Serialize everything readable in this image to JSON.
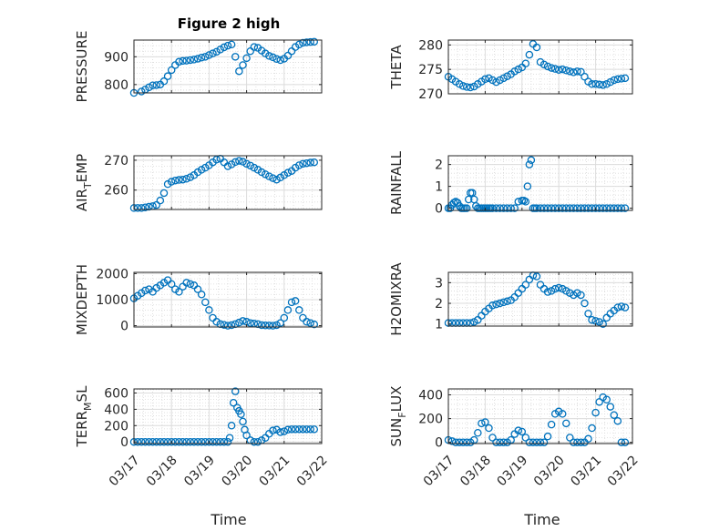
{
  "figure_title": "Figure 2 high",
  "x_label": "Time",
  "x_ticks": [
    "03/17",
    "03/18",
    "03/19",
    "03/20",
    "03/21",
    "03/22"
  ],
  "marker_color": "#0072bd",
  "chart_data": [
    {
      "type": "scatter",
      "ylabel": "PRESSURE",
      "xlabel": "",
      "x_unit": "days since 03/17",
      "xlim": [
        0,
        5
      ],
      "ylim": [
        770,
        960
      ],
      "yticks": [
        800,
        900
      ],
      "grid": true,
      "x": [
        0.0,
        0.2,
        0.3,
        0.4,
        0.5,
        0.6,
        0.7,
        0.8,
        0.9,
        1.0,
        1.1,
        1.2,
        1.3,
        1.4,
        1.5,
        1.6,
        1.7,
        1.8,
        1.9,
        2.0,
        2.1,
        2.2,
        2.3,
        2.4,
        2.5,
        2.6,
        2.7,
        2.8,
        2.9,
        3.0,
        3.1,
        3.2,
        3.3,
        3.4,
        3.5,
        3.6,
        3.7,
        3.8,
        3.9,
        4.0,
        4.1,
        4.2,
        4.3,
        4.4,
        4.5,
        4.6,
        4.7,
        4.8
      ],
      "y": [
        770,
        775,
        782,
        790,
        797,
        798,
        800,
        812,
        830,
        852,
        870,
        882,
        885,
        886,
        888,
        890,
        893,
        897,
        900,
        906,
        912,
        918,
        926,
        934,
        940,
        944,
        900,
        848,
        870,
        895,
        920,
        935,
        932,
        922,
        912,
        903,
        898,
        892,
        888,
        893,
        904,
        920,
        935,
        944,
        950,
        952,
        953,
        954
      ]
    },
    {
      "type": "scatter",
      "ylabel": "THETA",
      "xlabel": "",
      "x_unit": "days since 03/17",
      "xlim": [
        0,
        5
      ],
      "ylim": [
        270,
        281
      ],
      "yticks": [
        270,
        275,
        280
      ],
      "grid": true,
      "x": [
        0.0,
        0.1,
        0.2,
        0.3,
        0.4,
        0.5,
        0.6,
        0.7,
        0.8,
        0.9,
        1.0,
        1.1,
        1.2,
        1.3,
        1.4,
        1.5,
        1.6,
        1.7,
        1.8,
        1.9,
        2.0,
        2.1,
        2.2,
        2.3,
        2.4,
        2.5,
        2.6,
        2.7,
        2.8,
        2.9,
        3.0,
        3.1,
        3.2,
        3.3,
        3.4,
        3.5,
        3.6,
        3.7,
        3.8,
        3.9,
        4.0,
        4.1,
        4.2,
        4.3,
        4.4,
        4.5,
        4.6,
        4.7,
        4.8
      ],
      "y": [
        273.5,
        273,
        272.5,
        272,
        271.6,
        271.4,
        271.3,
        271.5,
        272,
        272.5,
        273,
        273.2,
        272.8,
        272.4,
        272.8,
        273.2,
        273.6,
        274,
        274.6,
        275,
        275.4,
        276.2,
        278,
        280.2,
        279.5,
        276.5,
        276,
        275.6,
        275.3,
        275.1,
        274.9,
        275,
        274.8,
        274.6,
        274.4,
        274.6,
        274.5,
        273.5,
        272.5,
        272,
        272,
        271.9,
        271.8,
        272,
        272.4,
        272.8,
        273,
        273.1,
        273.2
      ]
    },
    {
      "type": "scatter",
      "ylabel": "AIR_TEMP",
      "xlabel": "",
      "x_unit": "days since 03/17",
      "xlim": [
        0,
        5
      ],
      "ylim": [
        253.5,
        271.5
      ],
      "yticks": [
        260,
        270
      ],
      "grid": true,
      "x": [
        0.0,
        0.1,
        0.2,
        0.3,
        0.4,
        0.5,
        0.6,
        0.7,
        0.8,
        0.9,
        1.0,
        1.1,
        1.2,
        1.3,
        1.4,
        1.5,
        1.6,
        1.7,
        1.8,
        1.9,
        2.0,
        2.1,
        2.2,
        2.3,
        2.4,
        2.5,
        2.6,
        2.7,
        2.8,
        2.9,
        3.0,
        3.1,
        3.2,
        3.3,
        3.4,
        3.5,
        3.6,
        3.7,
        3.8,
        3.9,
        4.0,
        4.1,
        4.2,
        4.3,
        4.4,
        4.5,
        4.6,
        4.7,
        4.8
      ],
      "y": [
        254,
        254,
        254,
        254.2,
        254.4,
        254.6,
        255,
        256.5,
        259,
        262,
        262.8,
        263.2,
        263.4,
        263.5,
        263.8,
        264.3,
        265,
        266,
        266.8,
        267.5,
        268.3,
        269.3,
        270.2,
        270.5,
        269.3,
        268,
        268.6,
        269.4,
        269.8,
        269.5,
        268.8,
        268.2,
        267.5,
        266.8,
        266,
        265.3,
        264.6,
        264,
        263.5,
        264.2,
        265,
        265.8,
        266.4,
        267.5,
        268.3,
        268.8,
        269,
        269.2,
        269.3
      ]
    },
    {
      "type": "scatter",
      "ylabel": "RAINFALL",
      "xlabel": "",
      "x_unit": "days since 03/17",
      "xlim": [
        0,
        5
      ],
      "ylim": [
        -0.1,
        2.4
      ],
      "yticks": [
        0,
        1,
        2
      ],
      "grid": true,
      "x": [
        0.0,
        0.05,
        0.1,
        0.15,
        0.2,
        0.25,
        0.3,
        0.35,
        0.4,
        0.45,
        0.5,
        0.55,
        0.6,
        0.65,
        0.7,
        0.75,
        0.8,
        0.85,
        0.9,
        0.95,
        1.0,
        1.05,
        1.1,
        1.15,
        1.2,
        1.3,
        1.4,
        1.5,
        1.6,
        1.7,
        1.8,
        1.9,
        2.0,
        2.05,
        2.1,
        2.15,
        2.2,
        2.25,
        2.3,
        2.35,
        2.4,
        2.5,
        2.6,
        2.7,
        2.8,
        2.9,
        3.0,
        3.1,
        3.2,
        3.3,
        3.4,
        3.5,
        3.6,
        3.7,
        3.8,
        3.9,
        4.0,
        4.1,
        4.2,
        4.3,
        4.4,
        4.5,
        4.6,
        4.7,
        4.8
      ],
      "y": [
        0,
        0,
        0.15,
        0.25,
        0.3,
        0.25,
        0.1,
        0,
        0,
        0,
        0,
        0.4,
        0.7,
        0.7,
        0.4,
        0.1,
        0,
        0,
        0,
        0,
        0,
        0,
        0,
        0,
        0,
        0,
        0,
        0,
        0,
        0,
        0,
        0.3,
        0.35,
        0.35,
        0.3,
        1.0,
        2.0,
        2.2,
        0,
        0,
        0,
        0,
        0,
        0,
        0,
        0,
        0,
        0,
        0,
        0,
        0,
        0,
        0,
        0,
        0,
        0,
        0,
        0,
        0,
        0,
        0,
        0,
        0,
        0,
        0
      ]
    },
    {
      "type": "scatter",
      "ylabel": "MIXDEPTH",
      "xlabel": "",
      "x_unit": "days since 03/17",
      "xlim": [
        0,
        5
      ],
      "ylim": [
        -50,
        2050
      ],
      "yticks": [
        0,
        1000,
        2000
      ],
      "grid": true,
      "x": [
        0.0,
        0.1,
        0.2,
        0.3,
        0.4,
        0.5,
        0.6,
        0.7,
        0.8,
        0.9,
        1.0,
        1.1,
        1.2,
        1.3,
        1.4,
        1.5,
        1.6,
        1.7,
        1.8,
        1.9,
        2.0,
        2.1,
        2.2,
        2.3,
        2.4,
        2.5,
        2.6,
        2.7,
        2.8,
        2.9,
        3.0,
        3.1,
        3.2,
        3.3,
        3.4,
        3.5,
        3.6,
        3.7,
        3.8,
        3.9,
        4.0,
        4.1,
        4.2,
        4.3,
        4.4,
        4.5,
        4.6,
        4.7,
        4.8
      ],
      "y": [
        1050,
        1150,
        1250,
        1350,
        1400,
        1300,
        1450,
        1550,
        1650,
        1750,
        1600,
        1400,
        1300,
        1500,
        1650,
        1600,
        1550,
        1400,
        1200,
        900,
        600,
        300,
        150,
        60,
        30,
        0,
        20,
        60,
        120,
        180,
        150,
        100,
        80,
        60,
        20,
        10,
        5,
        0,
        20,
        100,
        300,
        600,
        900,
        950,
        600,
        300,
        150,
        100,
        50
      ]
    },
    {
      "type": "scatter",
      "ylabel": "H2OMIXRA",
      "xlabel": "",
      "x_unit": "days since 03/17",
      "xlim": [
        0,
        5
      ],
      "ylim": [
        0.9,
        3.5
      ],
      "yticks": [
        1,
        2,
        3
      ],
      "grid": true,
      "x": [
        0.0,
        0.1,
        0.2,
        0.3,
        0.4,
        0.5,
        0.6,
        0.7,
        0.8,
        0.9,
        1.0,
        1.1,
        1.2,
        1.3,
        1.4,
        1.5,
        1.6,
        1.7,
        1.8,
        1.9,
        2.0,
        2.1,
        2.2,
        2.3,
        2.4,
        2.5,
        2.6,
        2.7,
        2.8,
        2.9,
        3.0,
        3.1,
        3.2,
        3.3,
        3.4,
        3.5,
        3.6,
        3.7,
        3.8,
        3.9,
        4.0,
        4.1,
        4.2,
        4.3,
        4.4,
        4.5,
        4.6,
        4.7,
        4.8
      ],
      "y": [
        1.05,
        1.05,
        1.05,
        1.05,
        1.05,
        1.05,
        1.05,
        1.1,
        1.2,
        1.4,
        1.6,
        1.75,
        1.9,
        1.95,
        2.0,
        2.05,
        2.1,
        2.15,
        2.3,
        2.5,
        2.7,
        2.9,
        3.15,
        3.35,
        3.3,
        2.9,
        2.7,
        2.55,
        2.6,
        2.7,
        2.75,
        2.7,
        2.6,
        2.5,
        2.4,
        2.5,
        2.4,
        2.0,
        1.5,
        1.2,
        1.15,
        1.1,
        1.0,
        1.3,
        1.5,
        1.65,
        1.8,
        1.85,
        1.8
      ]
    },
    {
      "type": "scatter",
      "ylabel": "TERR_MSL",
      "xlabel": "",
      "x_unit": "days since 03/17",
      "xlim": [
        0,
        5
      ],
      "ylim": [
        -20,
        650
      ],
      "yticks": [
        0,
        200,
        400,
        600
      ],
      "grid": true,
      "x": [
        0.0,
        0.1,
        0.2,
        0.3,
        0.4,
        0.5,
        0.6,
        0.7,
        0.8,
        0.9,
        1.0,
        1.1,
        1.2,
        1.3,
        1.4,
        1.5,
        1.6,
        1.7,
        1.8,
        1.9,
        2.0,
        2.1,
        2.2,
        2.3,
        2.4,
        2.5,
        2.55,
        2.6,
        2.65,
        2.7,
        2.75,
        2.8,
        2.85,
        2.9,
        2.95,
        3.0,
        3.1,
        3.2,
        3.3,
        3.4,
        3.5,
        3.6,
        3.7,
        3.8,
        3.9,
        4.0,
        4.1,
        4.2,
        4.3,
        4.4,
        4.5,
        4.6,
        4.7,
        4.8
      ],
      "y": [
        0,
        0,
        0,
        0,
        0,
        0,
        0,
        0,
        0,
        0,
        0,
        0,
        0,
        0,
        0,
        0,
        0,
        0,
        0,
        0,
        0,
        0,
        0,
        0,
        0,
        0,
        50,
        200,
        480,
        620,
        420,
        380,
        340,
        250,
        150,
        80,
        20,
        0,
        0,
        20,
        50,
        100,
        140,
        150,
        120,
        130,
        150,
        155,
        155,
        155,
        155,
        155,
        155,
        155
      ]
    },
    {
      "type": "scatter",
      "ylabel": "SUN_FLUX",
      "xlabel": "",
      "x_unit": "days since 03/17",
      "xlim": [
        0,
        5
      ],
      "ylim": [
        -10,
        450
      ],
      "yticks": [
        0,
        200,
        400
      ],
      "grid": true,
      "x": [
        0.0,
        0.1,
        0.2,
        0.3,
        0.4,
        0.5,
        0.6,
        0.7,
        0.8,
        0.9,
        1.0,
        1.1,
        1.2,
        1.3,
        1.4,
        1.5,
        1.6,
        1.7,
        1.8,
        1.9,
        2.0,
        2.1,
        2.2,
        2.3,
        2.4,
        2.5,
        2.6,
        2.7,
        2.8,
        2.9,
        3.0,
        3.1,
        3.2,
        3.3,
        3.4,
        3.5,
        3.6,
        3.7,
        3.8,
        3.9,
        4.0,
        4.1,
        4.2,
        4.3,
        4.4,
        4.5,
        4.6,
        4.7,
        4.8
      ],
      "y": [
        20,
        10,
        0,
        0,
        0,
        0,
        0,
        20,
        80,
        160,
        170,
        120,
        40,
        0,
        0,
        0,
        0,
        20,
        70,
        100,
        90,
        40,
        0,
        0,
        0,
        0,
        0,
        50,
        150,
        240,
        260,
        240,
        160,
        40,
        0,
        0,
        0,
        0,
        30,
        120,
        250,
        340,
        380,
        360,
        300,
        230,
        180,
        0,
        0
      ]
    }
  ]
}
